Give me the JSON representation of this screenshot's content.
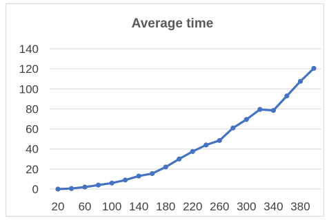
{
  "chart_data": {
    "type": "line",
    "title": "Average time",
    "xlabel": "",
    "ylabel": "",
    "x": [
      20,
      40,
      60,
      80,
      100,
      120,
      140,
      160,
      180,
      200,
      220,
      240,
      260,
      280,
      300,
      320,
      340,
      360,
      380,
      400
    ],
    "series": [
      {
        "values": [
          0,
          0.5,
          2,
          4,
          6,
          9,
          13,
          15.5,
          22,
          30,
          37.5,
          44,
          48.5,
          61,
          69.5,
          79.5,
          78.5,
          93,
          107.5,
          120.5
        ]
      }
    ],
    "x_tick_labels": [
      "20",
      "60",
      "100",
      "140",
      "180",
      "220",
      "260",
      "300",
      "340",
      "380"
    ],
    "y_tick_labels": [
      "0",
      "20",
      "40",
      "60",
      "80",
      "100",
      "120",
      "140"
    ],
    "ylim": [
      0,
      140
    ],
    "xlim": [
      20,
      400
    ],
    "grid": true,
    "legend": "none",
    "colors": {
      "line": "#4472c4",
      "marker": "#4472c4",
      "grid": "#d9d9d9",
      "text": "#404040",
      "title": "#595959"
    }
  }
}
